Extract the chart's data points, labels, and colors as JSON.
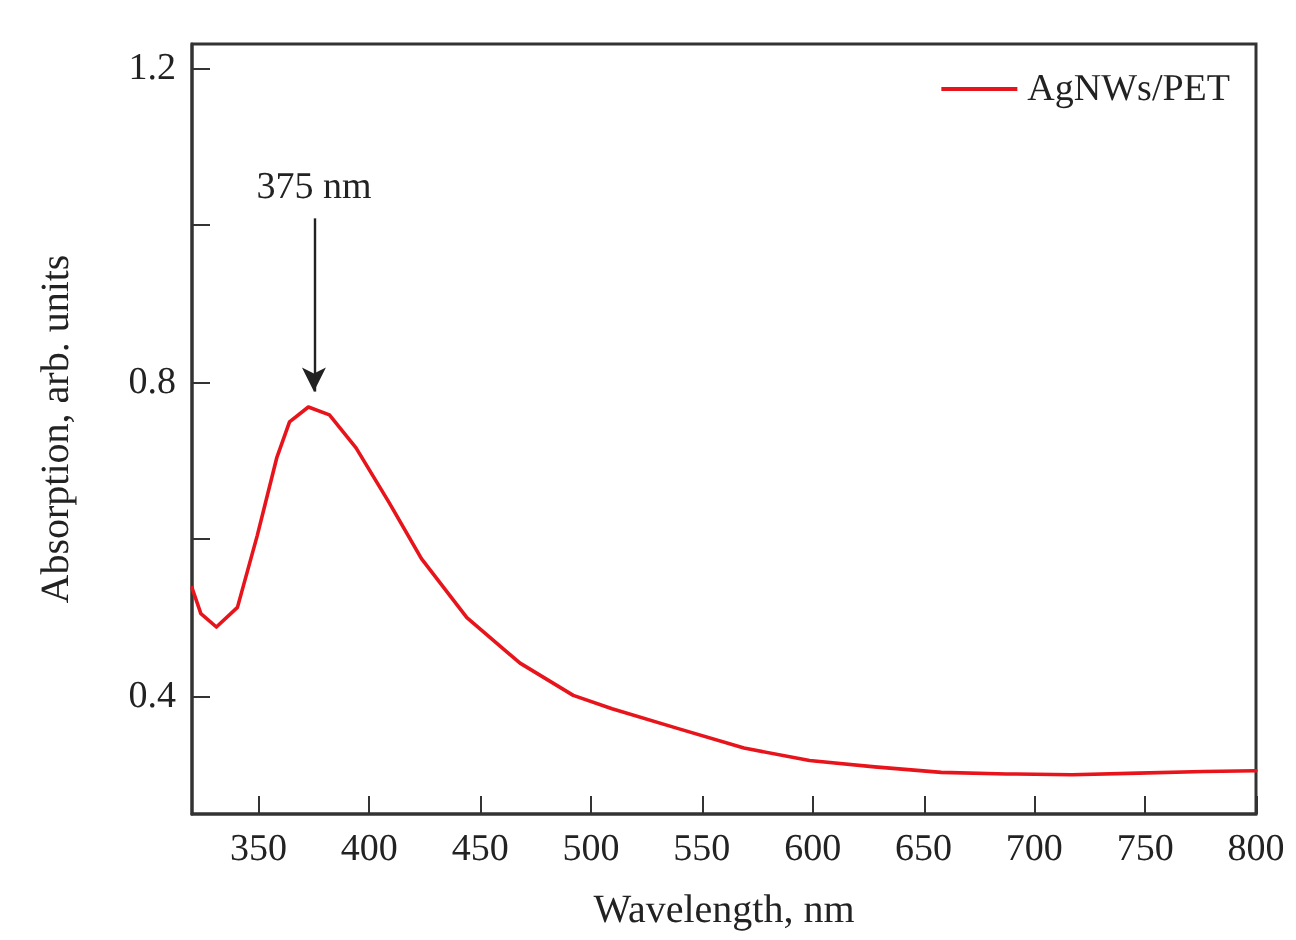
{
  "chart_data": {
    "type": "line",
    "xlabel": "Wavelength, nm",
    "ylabel": "Absorption, arb. units",
    "xlim": [
      320,
      800
    ],
    "xticks": [
      350,
      400,
      450,
      500,
      550,
      600,
      650,
      700,
      750,
      800
    ],
    "ylim": [
      0.25,
      1.23
    ],
    "yticks": [
      0.4,
      {
        "value": 0.6,
        "label": null
      },
      0.8,
      {
        "value": 1.0,
        "label": null
      },
      1.2
    ],
    "grid": false,
    "legend": "top right",
    "marker": "none",
    "line_style": "solid",
    "annotations": [
      {
        "text": "375 nm",
        "x": 375,
        "y": 0.768
      }
    ],
    "series": [
      {
        "name": "AgNWs/PET",
        "color": "#e8141b",
        "x": [
          320,
          324,
          331,
          340.5,
          349.4,
          358.3,
          364,
          372.5,
          382,
          394,
          409,
          423.5,
          444,
          468,
          492,
          509.5,
          539,
          569,
          598.6,
          628,
          658,
          687.5,
          717,
          747,
          776.5,
          800
        ],
        "values": [
          0.538,
          0.505,
          0.488,
          0.513,
          0.604,
          0.704,
          0.749,
          0.768,
          0.758,
          0.716,
          0.646,
          0.575,
          0.5,
          0.442,
          0.401,
          0.384,
          0.359,
          0.334,
          0.318,
          0.31,
          0.303,
          0.301,
          0.3,
          0.302,
          0.304,
          0.305
        ]
      }
    ]
  }
}
